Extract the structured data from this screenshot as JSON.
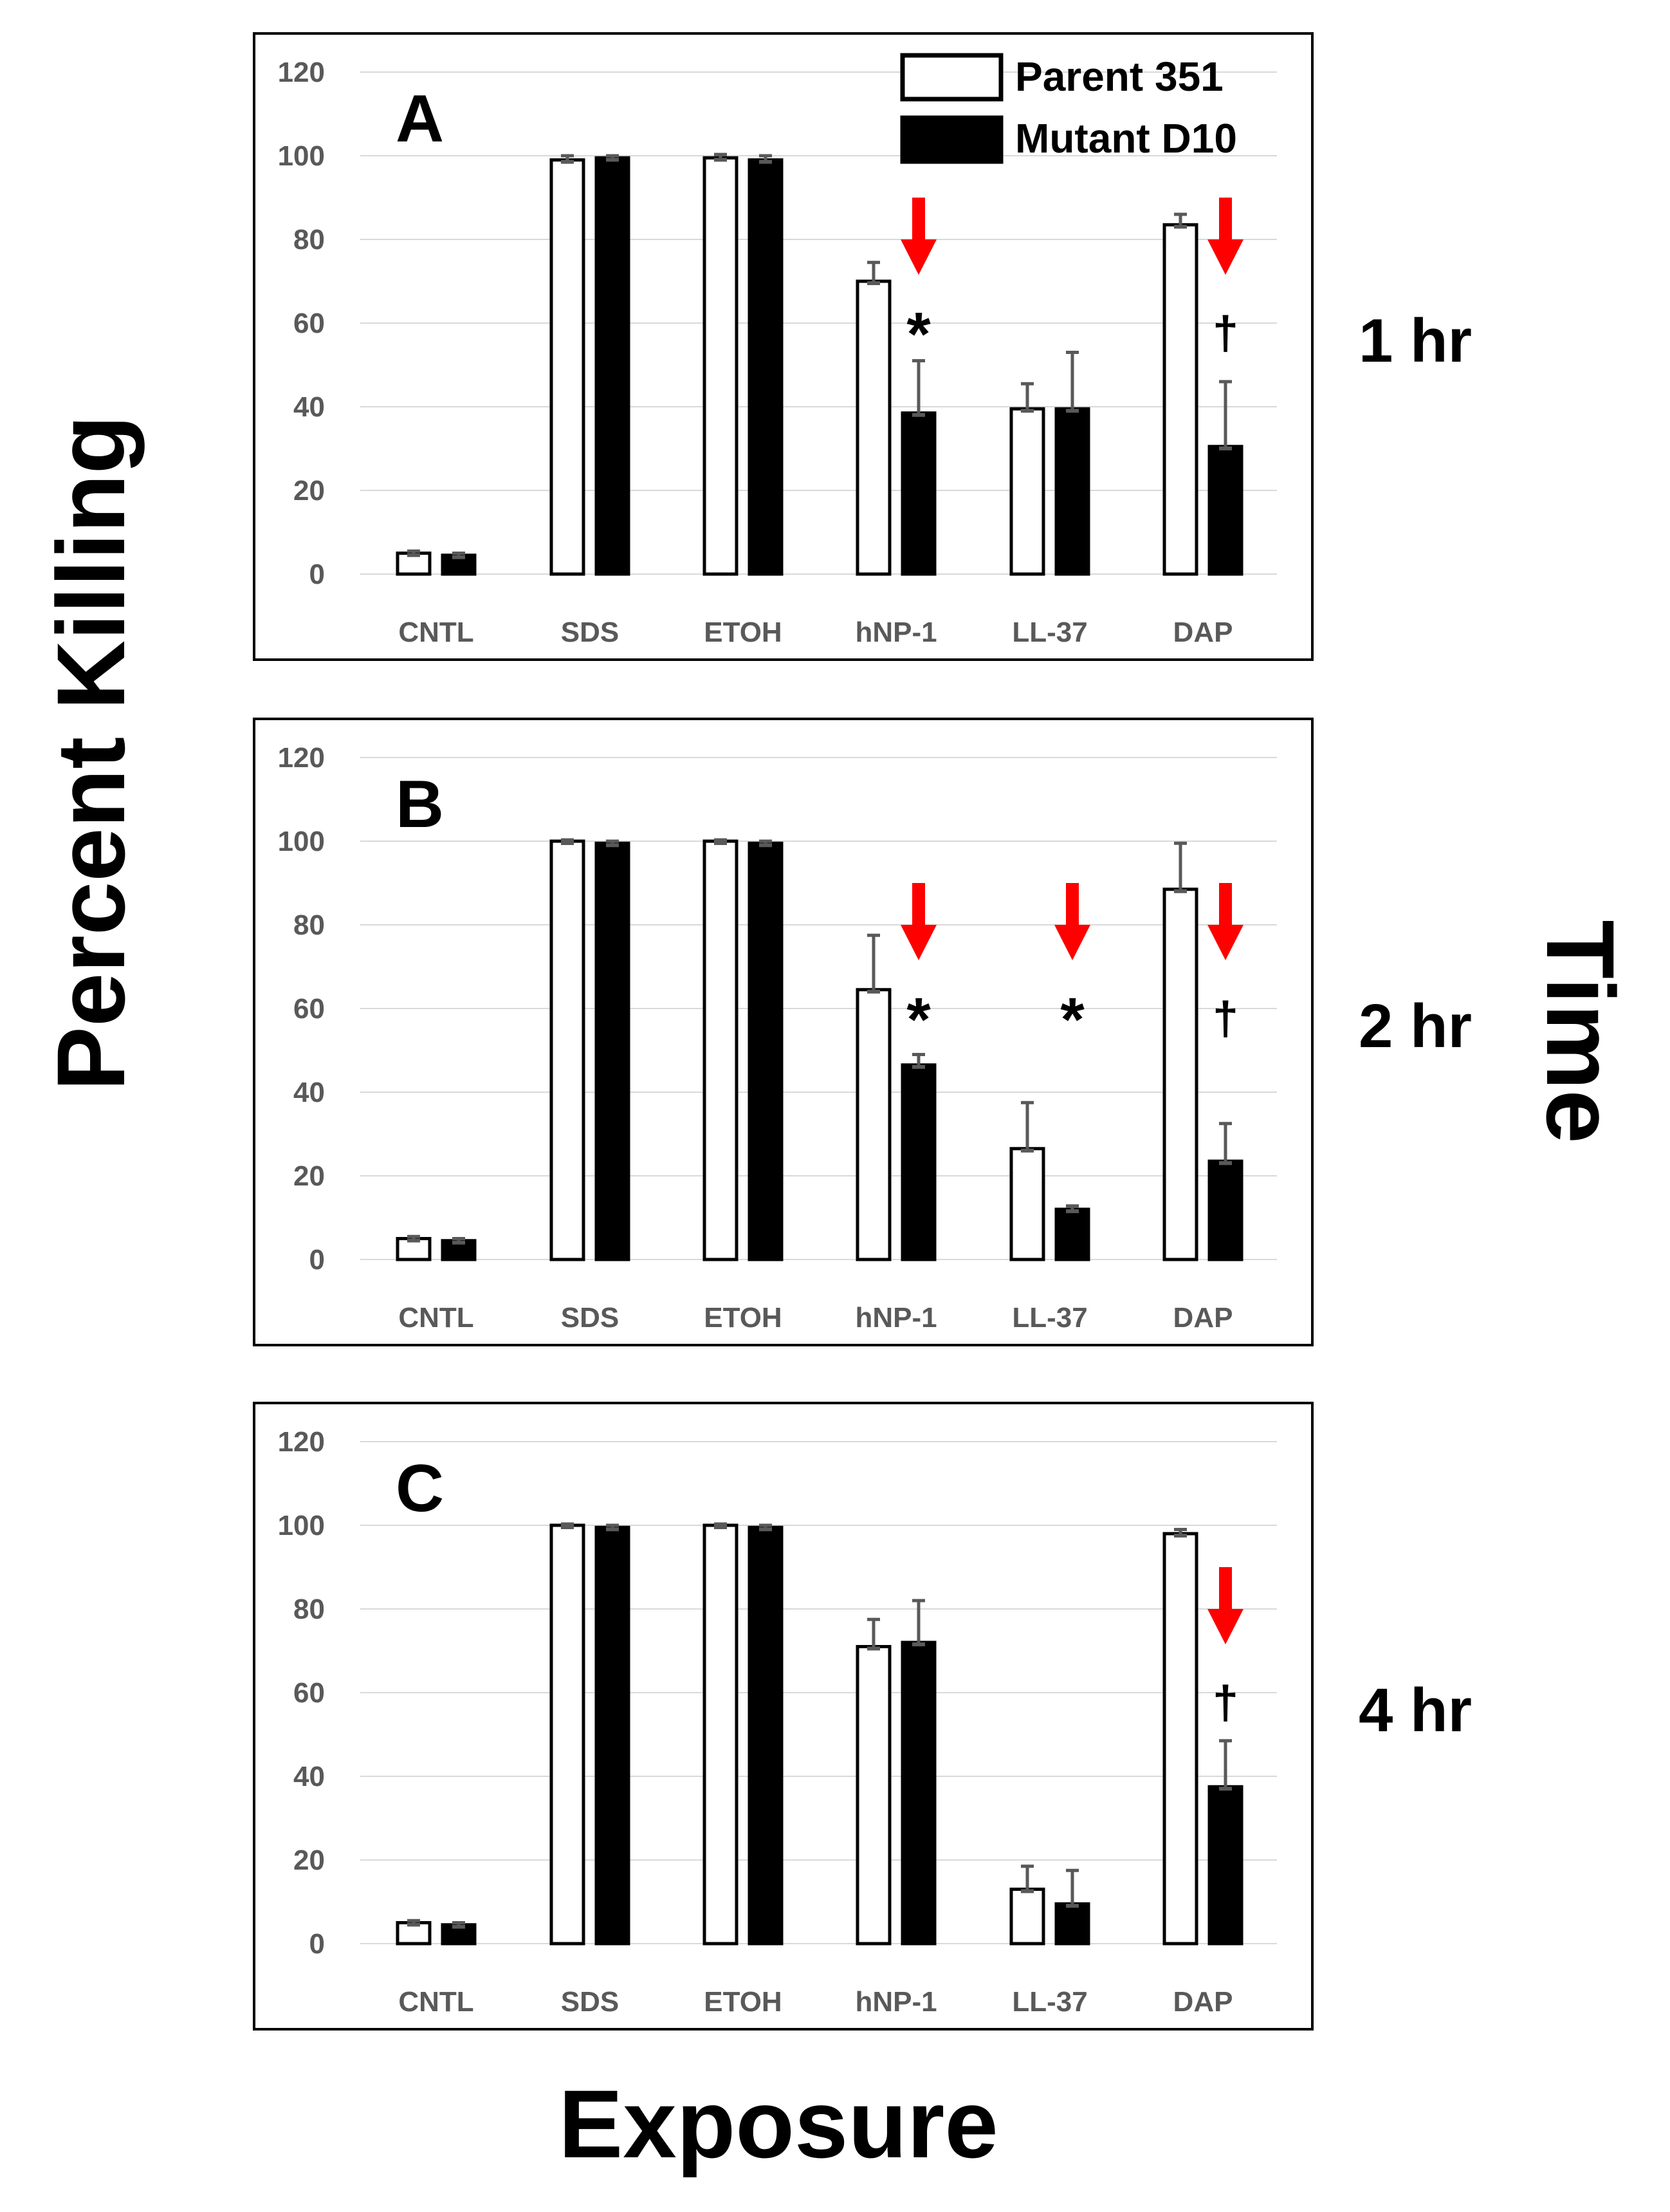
{
  "colors": {
    "parent_fill": "#ffffff",
    "mutant_fill": "#000000",
    "arrow": "#ff0000",
    "grid": "#d9d9d9",
    "error_bar": "#595959"
  },
  "labels": {
    "y_axis": "Percent Killing",
    "x_axis": "Exposure",
    "right_axis": "Time"
  },
  "legend": {
    "parent": "Parent 351",
    "mutant": "Mutant D10"
  },
  "chart_data": [
    {
      "type": "bar",
      "panel": "A",
      "time_label": "1 hr",
      "categories": [
        "CNTL",
        "SDS",
        "ETOH",
        "hNP-1",
        "LL-37",
        "DAP"
      ],
      "ylim": [
        0,
        120
      ],
      "yticks": [
        "0",
        "20",
        "40",
        "60",
        "80",
        "100",
        "120"
      ],
      "series": [
        {
          "name": "Parent 351",
          "values": [
            5,
            99,
            99.5,
            70,
            39.5,
            83.5
          ],
          "errors": [
            0.5,
            1,
            0.8,
            4.5,
            6,
            2.5
          ]
        },
        {
          "name": "Mutant D10",
          "values": [
            4.5,
            99.5,
            99,
            38.5,
            39.5,
            30.5
          ],
          "errors": [
            0.5,
            0.5,
            1,
            12.5,
            13.5,
            15.5
          ]
        }
      ],
      "annotations": [
        {
          "category": "hNP-1",
          "arrow": true,
          "symbol": "*"
        },
        {
          "category": "DAP",
          "arrow": true,
          "symbol": "†"
        }
      ]
    },
    {
      "type": "bar",
      "panel": "B",
      "time_label": "2 hr",
      "categories": [
        "CNTL",
        "SDS",
        "ETOH",
        "hNP-1",
        "LL-37",
        "DAP"
      ],
      "ylim": [
        0,
        120
      ],
      "yticks": [
        "0",
        "20",
        "40",
        "60",
        "80",
        "100",
        "120"
      ],
      "series": [
        {
          "name": "Parent 351",
          "values": [
            5,
            100,
            100,
            64.5,
            26.5,
            88.5
          ],
          "errors": [
            0.5,
            0.3,
            0.3,
            13,
            11,
            11
          ]
        },
        {
          "name": "Mutant D10",
          "values": [
            4.5,
            99.5,
            99.5,
            46.5,
            12,
            23.5
          ],
          "errors": [
            0.5,
            0.5,
            0.5,
            2.5,
            0.8,
            9
          ]
        }
      ],
      "annotations": [
        {
          "category": "hNP-1",
          "arrow": true,
          "symbol": "*"
        },
        {
          "category": "LL-37",
          "arrow": true,
          "symbol": "*"
        },
        {
          "category": "DAP",
          "arrow": true,
          "symbol": "†"
        }
      ]
    },
    {
      "type": "bar",
      "panel": "C",
      "time_label": "4 hr",
      "categories": [
        "CNTL",
        "SDS",
        "ETOH",
        "hNP-1",
        "LL-37",
        "DAP"
      ],
      "ylim": [
        0,
        120
      ],
      "yticks": [
        "0",
        "20",
        "40",
        "60",
        "80",
        "100",
        "120"
      ],
      "series": [
        {
          "name": "Parent 351",
          "values": [
            5,
            100,
            100,
            71,
            13,
            98
          ],
          "errors": [
            0.5,
            0.3,
            0.3,
            6.5,
            5.5,
            1
          ]
        },
        {
          "name": "Mutant D10",
          "values": [
            4.5,
            99.5,
            99.5,
            72,
            9.5,
            37.5
          ],
          "errors": [
            0.5,
            0.5,
            0.5,
            10,
            8,
            11
          ]
        }
      ],
      "annotations": [
        {
          "category": "DAP",
          "arrow": true,
          "symbol": "†"
        }
      ]
    }
  ]
}
